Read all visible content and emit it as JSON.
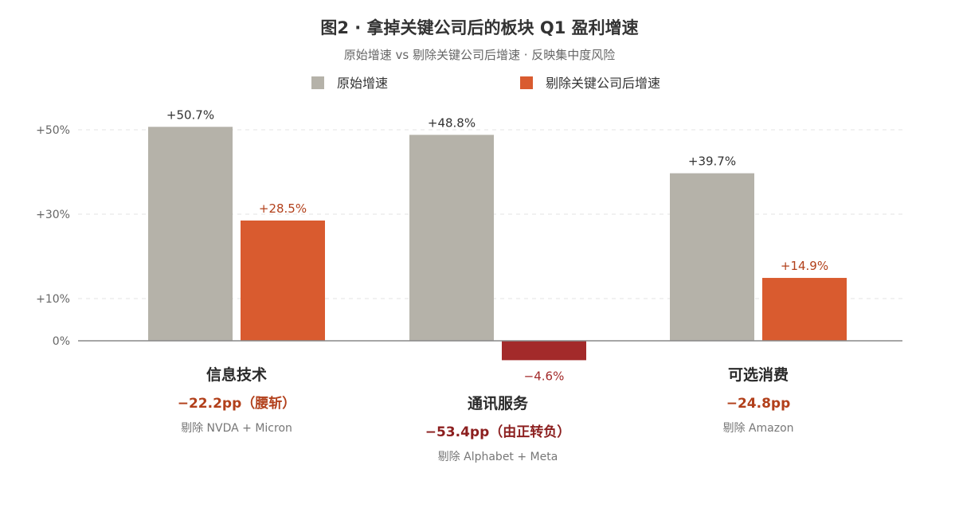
{
  "title": "图2 · 拿掉关键公司后的板块 Q1 盈利增速",
  "subtitle": "原始增速 vs 剔除关键公司后增速 · 反映集中度风险",
  "legend": [
    {
      "label": "原始增速",
      "color": "#b5b2a9"
    },
    {
      "label": "剔除关键公司后增速",
      "color": "#d95b2f"
    }
  ],
  "colors": {
    "original": "#b5b2a9",
    "adjusted": "#d95b2f",
    "negative": "#a32a2a",
    "original_label": "#333333",
    "adjusted_label": "#b2401b",
    "negative_label": "#a32a2a",
    "delta": "#b2401b",
    "delta_strong": "#8c1f1f"
  },
  "chart_data": {
    "type": "bar",
    "title": "图2 · 拿掉关键公司后的板块 Q1 盈利增速",
    "subtitle": "原始增速 vs 剔除关键公司后增速 · 反映集中度风险",
    "categories": [
      "信息技术",
      "通讯服务",
      "可选消费"
    ],
    "series": [
      {
        "name": "原始增速",
        "values": [
          50.7,
          48.8,
          39.7
        ],
        "labels": [
          "+50.7%",
          "+48.8%",
          "+39.7%"
        ]
      },
      {
        "name": "剔除关键公司后增速",
        "values": [
          28.5,
          -4.6,
          14.9
        ],
        "labels": [
          "+28.5%",
          "−4.6%",
          "+14.9%"
        ]
      }
    ],
    "yticks": [
      {
        "value": 50,
        "label": "+50%"
      },
      {
        "value": 30,
        "label": "+30%"
      },
      {
        "value": 10,
        "label": "+10%"
      },
      {
        "value": 0,
        "label": "0%"
      }
    ],
    "ylim": [
      -10,
      55
    ],
    "grid": true,
    "legend_position": "top-center",
    "annotations": [
      {
        "delta": "−22.2pp（腰斩）",
        "note": "剔除 NVDA + Micron"
      },
      {
        "delta": "−53.4pp（由正转负）",
        "note": "剔除 Alphabet + Meta"
      },
      {
        "delta": "−24.8pp",
        "note": "剔除 Amazon"
      }
    ]
  }
}
